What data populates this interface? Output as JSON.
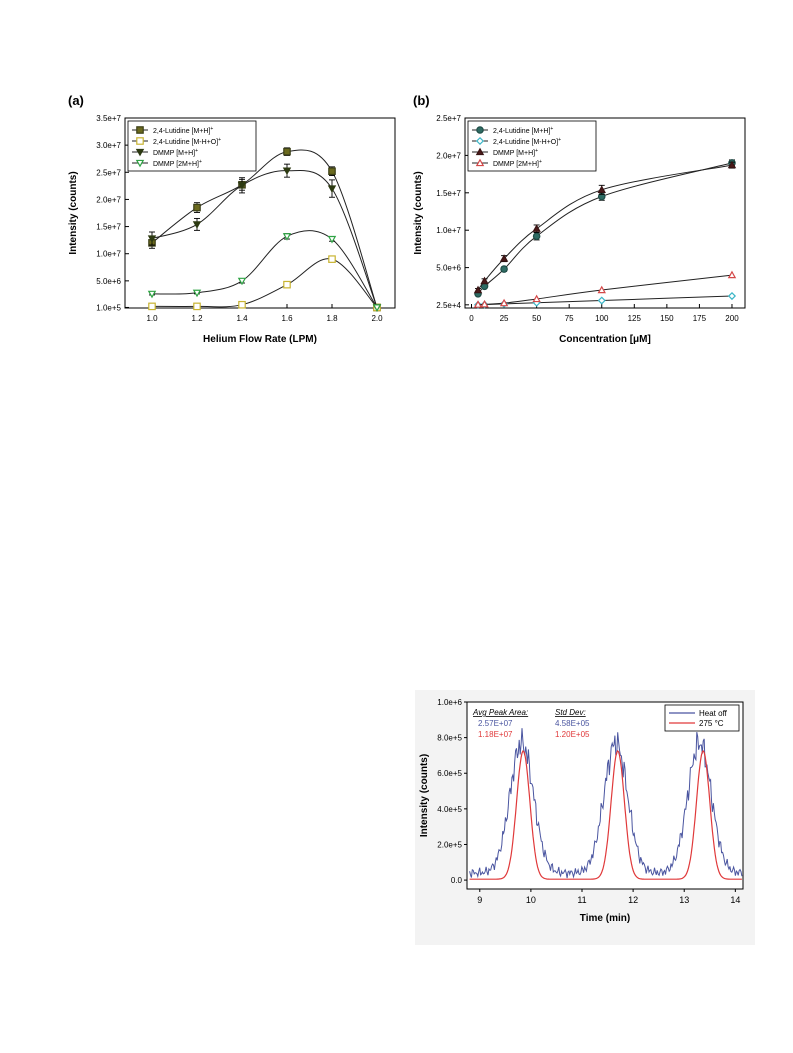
{
  "chart_data": [
    {
      "panel_label": "(a)",
      "type": "line",
      "xlabel": "Helium Flow Rate (LPM)",
      "ylabel": "Intensity (counts)",
      "xlim": [
        0.88,
        2.08
      ],
      "ylim": [
        0,
        35000000
      ],
      "x_ticks": [
        "1.0",
        "1.2",
        "1.4",
        "1.6",
        "1.8",
        "2.0"
      ],
      "x_tick_values": [
        1.0,
        1.2,
        1.4,
        1.6,
        1.8,
        2.0
      ],
      "y_ticks": [
        "1.0e+5",
        "5.0e+6",
        "1.0e+7",
        "1.5e+7",
        "2.0e+7",
        "2.5e+7",
        "3.0e+7",
        "3.5e+7"
      ],
      "y_tick_values": [
        100000,
        5000000,
        10000000,
        15000000,
        20000000,
        25000000,
        30000000,
        35000000
      ],
      "legend_position": "top-left",
      "grid": false,
      "series": [
        {
          "label": "2,4-Lutidine [M+H]",
          "sup": "+",
          "marker": "square",
          "color": "#3b3f17",
          "fill": "#6b6a1e",
          "x": [
            1.0,
            1.2,
            1.4,
            1.6,
            1.8,
            2.0
          ],
          "y": [
            12000000,
            18500000,
            22700000,
            28800000,
            25200000,
            100000
          ],
          "err": [
            1000000,
            900000,
            1000000,
            700000,
            800000,
            0
          ]
        },
        {
          "label": "2,4-Lutidine [M-H+O]",
          "sup": "+",
          "marker": "square-open",
          "color": "#c8b431",
          "fill": "#ffffff",
          "x": [
            1.0,
            1.2,
            1.4,
            1.6,
            1.8,
            2.0
          ],
          "y": [
            300000,
            300000,
            600000,
            4300000,
            9000000,
            100000
          ],
          "err": [
            100000,
            100000,
            100000,
            200000,
            300000,
            0
          ]
        },
        {
          "label": "DMMP [M+H]",
          "sup": "+",
          "marker": "triangle-down",
          "color": "#2d3a12",
          "fill": "#2d3a12",
          "x": [
            1.0,
            1.2,
            1.4,
            1.6,
            1.8,
            2.0
          ],
          "y": [
            12800000,
            15400000,
            22600000,
            25300000,
            22000000,
            100000
          ],
          "err": [
            1200000,
            1100000,
            1400000,
            1200000,
            1600000,
            0
          ]
        },
        {
          "label": "DMMP [2M+H]",
          "sup": "+",
          "marker": "triangle-down-open",
          "color": "#2fa344",
          "fill": "#ffffff",
          "x": [
            1.0,
            1.2,
            1.4,
            1.6,
            1.8,
            2.0
          ],
          "y": [
            2600000,
            2800000,
            5000000,
            13200000,
            12700000,
            100000
          ],
          "err": [
            200000,
            200000,
            400000,
            500000,
            400000,
            0
          ]
        }
      ]
    },
    {
      "panel_label": "(b)",
      "type": "line",
      "xlabel": "Concentration [μM]",
      "ylabel": "Intensity (counts)",
      "xlim": [
        -5,
        210
      ],
      "ylim": [
        -400000,
        25000000
      ],
      "x_ticks": [
        "0",
        "25",
        "50",
        "75",
        "100",
        "125",
        "150",
        "175",
        "200"
      ],
      "x_tick_values": [
        0,
        25,
        50,
        75,
        100,
        125,
        150,
        175,
        200
      ],
      "y_ticks": [
        "2.5e+4",
        "5.0e+6",
        "1.0e+7",
        "1.5e+7",
        "2.0e+7",
        "2.5e+7"
      ],
      "y_tick_values": [
        25000,
        5000000,
        10000000,
        15000000,
        20000000,
        25000000
      ],
      "legend_position": "top-left",
      "grid": false,
      "series": [
        {
          "label": "2,4-Lutidine [M+H]",
          "sup": "+",
          "marker": "circle",
          "color": "#1f4d47",
          "fill": "#2e6b63",
          "x": [
            5,
            10,
            25,
            50,
            100,
            200
          ],
          "y": [
            1500000,
            2500000,
            4800000,
            9200000,
            14500000,
            19000000
          ],
          "err": [
            200000,
            200000,
            300000,
            500000,
            500000,
            400000
          ]
        },
        {
          "label": "2,4-Lutidine [M-H+O]",
          "sup": "+",
          "marker": "diamond-open",
          "color": "#3ab5c6",
          "fill": "#ffffff",
          "x": [
            5,
            10,
            25,
            50,
            100,
            200
          ],
          "y": [
            25000,
            50000,
            150000,
            300000,
            600000,
            1200000
          ],
          "err": [
            0,
            0,
            0,
            0,
            0,
            0
          ]
        },
        {
          "label": "DMMP [M+H]",
          "sup": "+",
          "marker": "triangle",
          "color": "#3a1414",
          "fill": "#4a1a1a",
          "x": [
            5,
            10,
            25,
            50,
            100,
            200
          ],
          "y": [
            2000000,
            3200000,
            6200000,
            10200000,
            15400000,
            18700000
          ],
          "err": [
            200000,
            300000,
            400000,
            500000,
            600000,
            400000
          ]
        },
        {
          "label": "DMMP [2M+H]",
          "sup": "+",
          "marker": "triangle-open",
          "color": "#d44848",
          "fill": "#ffffff",
          "x": [
            5,
            10,
            25,
            50,
            100,
            200
          ],
          "y": [
            50000,
            100000,
            250000,
            800000,
            2000000,
            4000000
          ],
          "err": [
            0,
            0,
            0,
            0,
            0,
            0
          ]
        }
      ]
    },
    {
      "type": "line",
      "xlabel": "Time (min)",
      "ylabel": "Intensity (counts)",
      "xlim": [
        8.75,
        14.15
      ],
      "ylim": [
        -50000,
        1000000
      ],
      "x_ticks": [
        "9",
        "10",
        "11",
        "12",
        "13",
        "14"
      ],
      "x_tick_values": [
        9,
        10,
        11,
        12,
        13,
        14
      ],
      "y_ticks": [
        "0.0",
        "2.0e+5",
        "4.0e+5",
        "6.0e+5",
        "8.0e+5",
        "1.0e+6"
      ],
      "y_tick_values": [
        0,
        200000,
        400000,
        600000,
        800000,
        1000000
      ],
      "legend_position": "top-right",
      "grid": false,
      "stats_table": {
        "header_area": "Avg Peak Area:",
        "header_dev": "Std Dev:",
        "rows": [
          {
            "area": "2.57E+07",
            "dev": "4.58E+05",
            "color": "#4a55a0"
          },
          {
            "area": "1.18E+07",
            "dev": "1.20E+05",
            "color": "#e0393a"
          }
        ]
      },
      "series": [
        {
          "label": "Heat off",
          "color": "#4a55a0",
          "peaks": [
            9.82,
            11.66,
            13.3
          ],
          "height": 730000,
          "width": 0.23,
          "baseline": 40000
        },
        {
          "label": "275 °C",
          "color": "#e0393a",
          "peaks": [
            9.85,
            11.7,
            13.37
          ],
          "height": 720000,
          "width": 0.13,
          "baseline": 5000
        }
      ]
    }
  ]
}
